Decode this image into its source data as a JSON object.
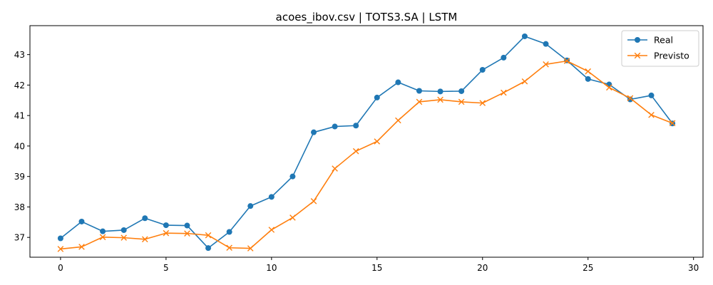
{
  "chart_data": {
    "type": "line",
    "title": "acoes_ibov.csv | TOTS3.SA | LSTM",
    "xlabel": "",
    "ylabel": "",
    "xlim": [
      -1.45,
      30.45
    ],
    "ylim": [
      36.35,
      43.95
    ],
    "xticks": [
      0,
      5,
      10,
      15,
      20,
      25,
      30
    ],
    "yticks": [
      37,
      38,
      39,
      40,
      41,
      42,
      43
    ],
    "grid": false,
    "legend_position": "top-right",
    "x": [
      0,
      1,
      2,
      3,
      4,
      5,
      6,
      7,
      8,
      9,
      10,
      11,
      12,
      13,
      14,
      15,
      16,
      17,
      18,
      19,
      20,
      21,
      22,
      23,
      24,
      25,
      26,
      27,
      28,
      29
    ],
    "series": [
      {
        "name": "Real",
        "color": "#1f77b4",
        "marker": "circle",
        "values": [
          36.97,
          37.52,
          37.2,
          37.24,
          37.63,
          37.4,
          37.39,
          36.65,
          37.18,
          38.03,
          38.33,
          39.0,
          40.45,
          40.64,
          40.67,
          41.59,
          42.09,
          41.81,
          41.79,
          41.8,
          42.5,
          42.9,
          43.6,
          43.35,
          42.81,
          42.2,
          42.02,
          41.53,
          41.66,
          40.74
        ]
      },
      {
        "name": "Previsto",
        "color": "#ff7f0e",
        "marker": "x",
        "values": [
          36.62,
          36.69,
          37.01,
          36.99,
          36.94,
          37.14,
          37.13,
          37.07,
          36.66,
          36.64,
          37.25,
          37.65,
          38.19,
          39.26,
          39.83,
          40.15,
          40.84,
          41.45,
          41.52,
          41.45,
          41.41,
          41.75,
          42.12,
          42.68,
          42.79,
          42.45,
          41.92,
          41.57,
          41.02,
          40.75
        ]
      }
    ]
  }
}
